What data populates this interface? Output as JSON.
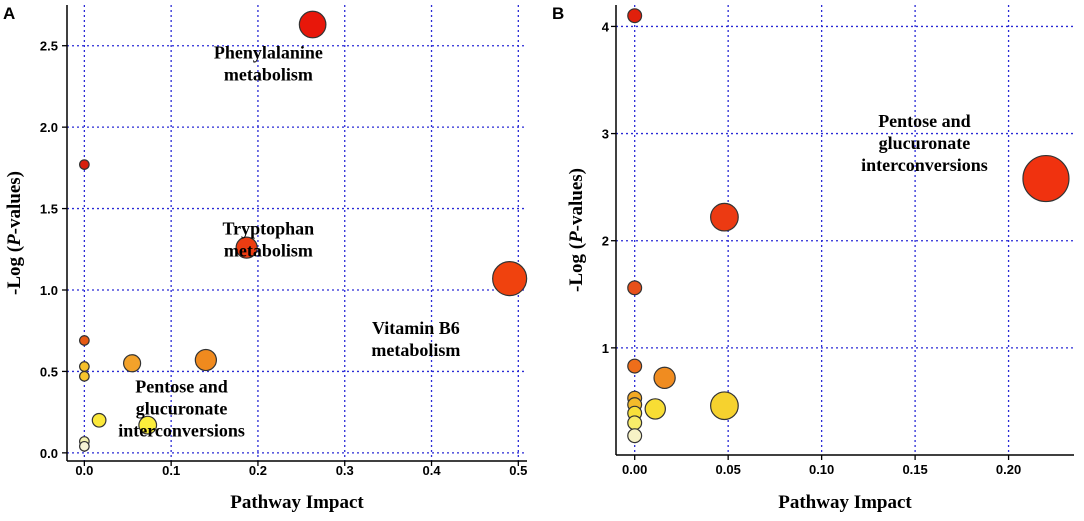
{
  "chart_data": [
    {
      "id": "A",
      "panel_label": "A",
      "type": "scatter",
      "xlabel": "Pathway Impact",
      "ylabel_pre": "-Log (",
      "ylabel_p": "P",
      "ylabel_post": "-values)",
      "xlim": [
        -0.02,
        0.51
      ],
      "ylim": [
        -0.05,
        2.75
      ],
      "xticks": [
        0.0,
        0.1,
        0.2,
        0.3,
        0.4,
        0.5
      ],
      "xtick_labels": [
        "0.0",
        "0.1",
        "0.2",
        "0.3",
        "0.4",
        "0.5"
      ],
      "yticks": [
        0.0,
        0.5,
        1.0,
        1.5,
        2.0,
        2.5
      ],
      "ytick_labels": [
        "0.0",
        "0.5",
        "1.0",
        "1.5",
        "2.0",
        "2.5"
      ],
      "points": [
        {
          "x": 0.263,
          "y": 2.63,
          "size": 0.78,
          "color": "#e8170a"
        },
        {
          "x": 0.0,
          "y": 1.77,
          "size": 0.28,
          "color": "#d9200d"
        },
        {
          "x": 0.187,
          "y": 1.26,
          "size": 0.62,
          "color": "#ec3c12"
        },
        {
          "x": 0.49,
          "y": 1.07,
          "size": 1.0,
          "color": "#f0420e"
        },
        {
          "x": 0.0,
          "y": 0.69,
          "size": 0.28,
          "color": "#e65a14"
        },
        {
          "x": 0.14,
          "y": 0.57,
          "size": 0.62,
          "color": "#f08a1e"
        },
        {
          "x": 0.055,
          "y": 0.55,
          "size": 0.5,
          "color": "#f3a22a"
        },
        {
          "x": 0.0,
          "y": 0.53,
          "size": 0.28,
          "color": "#f6bf2c"
        },
        {
          "x": 0.0,
          "y": 0.47,
          "size": 0.28,
          "color": "#f7c52e"
        },
        {
          "x": 0.017,
          "y": 0.2,
          "size": 0.4,
          "color": "#fbe83a"
        },
        {
          "x": 0.073,
          "y": 0.17,
          "size": 0.52,
          "color": "#fbee3c"
        },
        {
          "x": 0.0,
          "y": 0.07,
          "size": 0.28,
          "color": "#f6f3b2"
        },
        {
          "x": 0.0,
          "y": 0.04,
          "size": 0.28,
          "color": "#f7f4d6"
        }
      ],
      "annotations": [
        {
          "lines": [
            "Phenylalanine",
            "metabolism"
          ],
          "x": 0.212,
          "y": 2.42
        },
        {
          "lines": [
            "Tryptophan",
            "metabolism"
          ],
          "x": 0.212,
          "y": 1.34
        },
        {
          "lines": [
            "Vitamin B6",
            "metabolism"
          ],
          "x": 0.382,
          "y": 0.73
        },
        {
          "lines": [
            "Pentose and",
            "glucuronate",
            "interconversions"
          ],
          "x": 0.112,
          "y": 0.37
        }
      ]
    },
    {
      "id": "B",
      "panel_label": "B",
      "type": "scatter",
      "xlabel": "Pathway Impact",
      "ylabel_pre": "-Log (",
      "ylabel_p": "P",
      "ylabel_post": "-values)",
      "xlim": [
        -0.01,
        0.235
      ],
      "ylim": [
        0.0,
        4.2
      ],
      "xticks": [
        0.0,
        0.05,
        0.1,
        0.15,
        0.2
      ],
      "xtick_labels": [
        "0.00",
        "0.05",
        "0.10",
        "0.15",
        "0.20"
      ],
      "yticks": [
        1,
        2,
        3,
        4
      ],
      "ytick_labels": [
        "1",
        "2",
        "3",
        "4"
      ],
      "points": [
        {
          "x": 0.0,
          "y": 4.1,
          "size": 0.3,
          "color": "#e0200c"
        },
        {
          "x": 0.22,
          "y": 2.58,
          "size": 1.0,
          "color": "#f0320f"
        },
        {
          "x": 0.048,
          "y": 2.22,
          "size": 0.6,
          "color": "#ec3a12"
        },
        {
          "x": 0.0,
          "y": 1.56,
          "size": 0.3,
          "color": "#e8501a"
        },
        {
          "x": 0.0,
          "y": 0.83,
          "size": 0.3,
          "color": "#ee6e1a"
        },
        {
          "x": 0.016,
          "y": 0.72,
          "size": 0.46,
          "color": "#f08c20"
        },
        {
          "x": 0.0,
          "y": 0.53,
          "size": 0.3,
          "color": "#f3a824"
        },
        {
          "x": 0.0,
          "y": 0.47,
          "size": 0.3,
          "color": "#f4bb2a"
        },
        {
          "x": 0.048,
          "y": 0.46,
          "size": 0.6,
          "color": "#f6d22e"
        },
        {
          "x": 0.011,
          "y": 0.43,
          "size": 0.44,
          "color": "#f8dd34"
        },
        {
          "x": 0.0,
          "y": 0.39,
          "size": 0.3,
          "color": "#f8e03a"
        },
        {
          "x": 0.0,
          "y": 0.3,
          "size": 0.3,
          "color": "#f8ec6a"
        },
        {
          "x": 0.0,
          "y": 0.18,
          "size": 0.3,
          "color": "#f7f2c6"
        }
      ],
      "annotations": [
        {
          "lines": [
            "Pentose and",
            "glucuronate",
            "interconversions"
          ],
          "x": 0.155,
          "y": 3.06
        }
      ]
    }
  ]
}
